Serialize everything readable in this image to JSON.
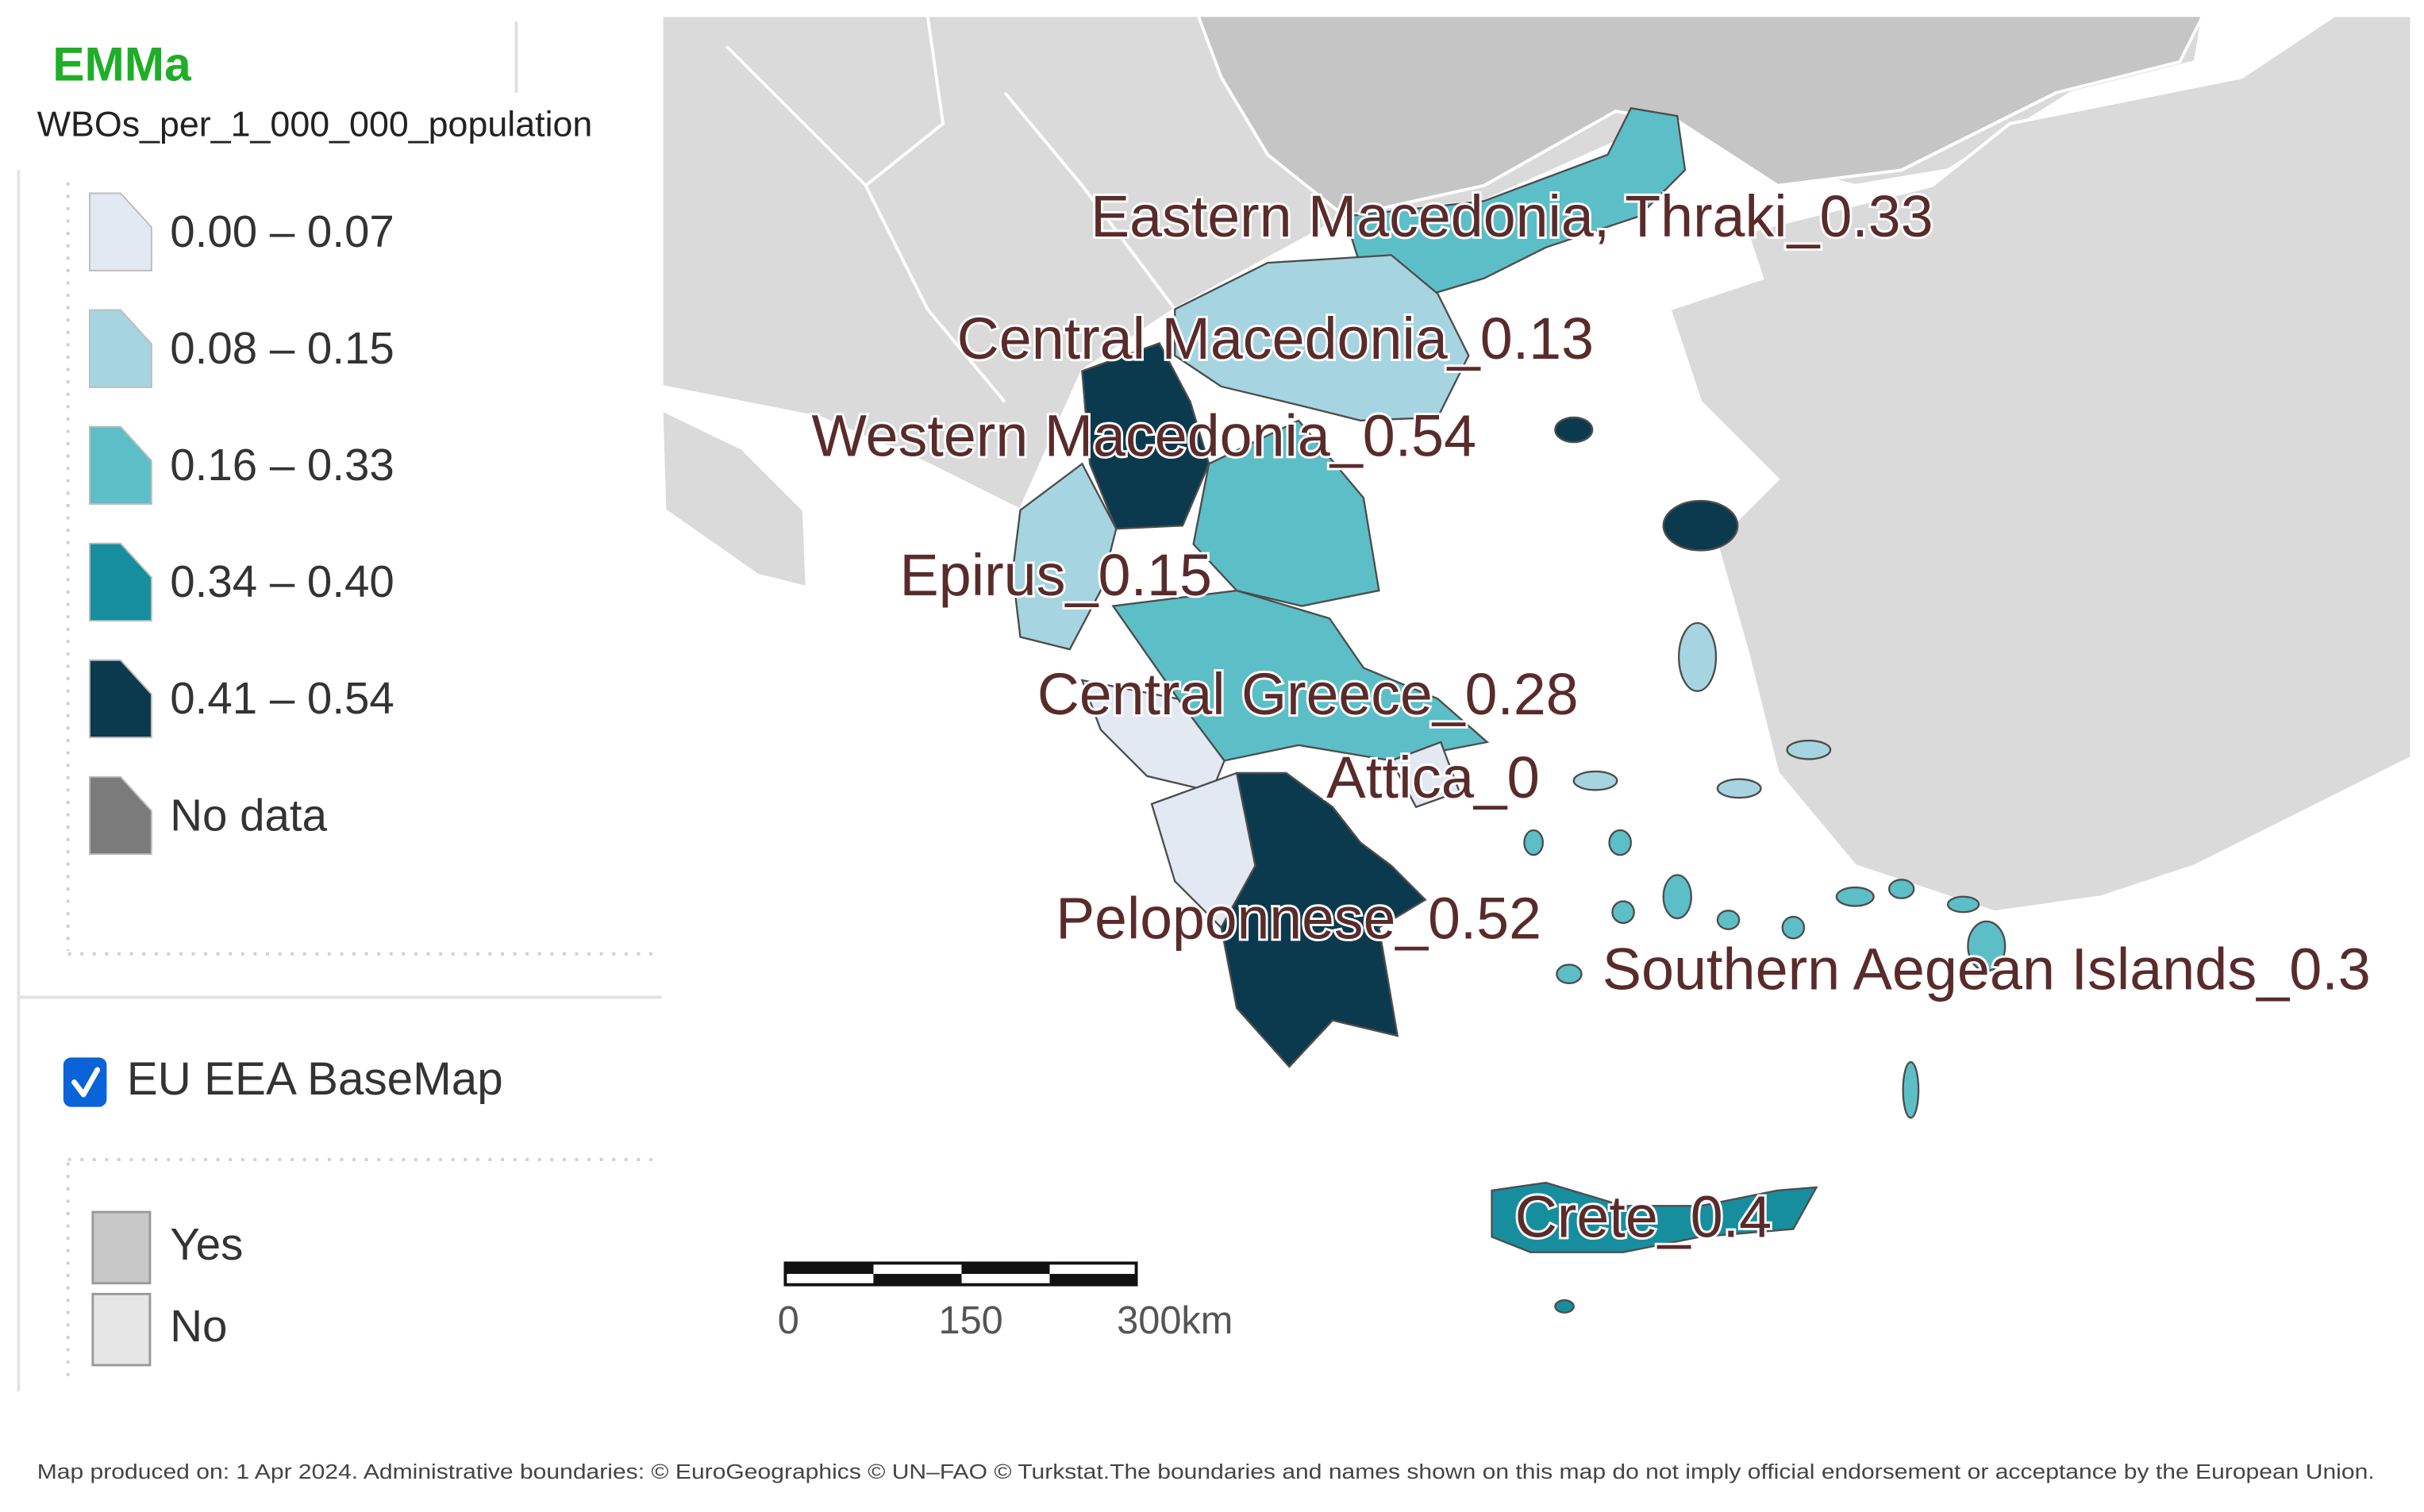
{
  "app": {
    "title": "EMMa"
  },
  "layer": {
    "title": "WBOs_per_1_000_000_population",
    "legend": [
      {
        "label": "0.00 – 0.07",
        "color": "#e3e9f3"
      },
      {
        "label": "0.08 – 0.15",
        "color": "#a6d5e1"
      },
      {
        "label": "0.16 – 0.33",
        "color": "#5cbfc7"
      },
      {
        "label": "0.34 – 0.40",
        "color": "#178e9e"
      },
      {
        "label": "0.41 – 0.54",
        "color": "#0b3a4e"
      },
      {
        "label": "No data",
        "color": "#7b7b7b"
      }
    ]
  },
  "basemap": {
    "label": "EU EEA BaseMap",
    "checked": true,
    "legend": [
      {
        "label": "Yes",
        "color": "#c8c8c8"
      },
      {
        "label": "No",
        "color": "#e6e6e6"
      }
    ]
  },
  "map": {
    "regions": [
      {
        "label": "Eastern Macedonia, Thraki_0.33",
        "color": "#5cbfc7"
      },
      {
        "label": "Central Macedonia_0.13",
        "color": "#a6d5e1"
      },
      {
        "label": "Western Macedonia_0.54",
        "color": "#0b3a4e"
      },
      {
        "label": "Epirus_0.15",
        "color": "#a6d5e1"
      },
      {
        "label": "Central Greece_0.28",
        "color": "#5cbfc7"
      },
      {
        "label": "Attica_0",
        "color": "#e3e9f3"
      },
      {
        "label": "Peloponnese_0.52",
        "color": "#0b3a4e"
      },
      {
        "label": "Southern Aegean Islands_0.3",
        "color": "#5cbfc7"
      },
      {
        "label": "Crete_0.4",
        "color": "#178e9e"
      }
    ],
    "scale_bar": {
      "ticks": [
        "0",
        "150",
        "300km"
      ]
    }
  },
  "footer": "Map produced on: 1 Apr 2024. Administrative boundaries: © EuroGeographics © UN–FAO © Turkstat.The boundaries and names shown on this map do not imply official endorsement or acceptance by the European Union."
}
